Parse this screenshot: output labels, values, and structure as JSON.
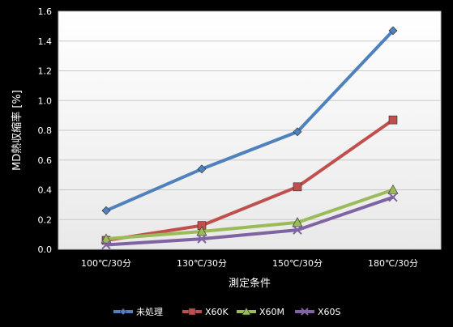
{
  "chart_data": {
    "type": "line",
    "categories": [
      "100℃/30分",
      "130℃/30分",
      "150℃/30分",
      "180℃/30分"
    ],
    "xlabel": "測定条件",
    "ylabel": "MD熱収縮率 [%]",
    "ylim": [
      0,
      1.6
    ],
    "yticks": [
      "0.0",
      "0.2",
      "0.4",
      "0.6",
      "0.8",
      "1.0",
      "1.2",
      "1.4",
      "1.6"
    ],
    "grid": "horizontal",
    "legend_position": "bottom",
    "series": [
      {
        "name": "未処理",
        "values": [
          0.26,
          0.54,
          0.79,
          1.47
        ],
        "color": "#4f81bd",
        "marker": "diamond"
      },
      {
        "name": "X60K",
        "values": [
          0.06,
          0.16,
          0.42,
          0.87
        ],
        "color": "#c0504d",
        "marker": "square"
      },
      {
        "name": "X60M",
        "values": [
          0.07,
          0.12,
          0.18,
          0.4
        ],
        "color": "#9bbb59",
        "marker": "triangle"
      },
      {
        "name": "X60S",
        "values": [
          0.03,
          0.07,
          0.13,
          0.35
        ],
        "color": "#8064a2",
        "marker": "x"
      }
    ]
  }
}
